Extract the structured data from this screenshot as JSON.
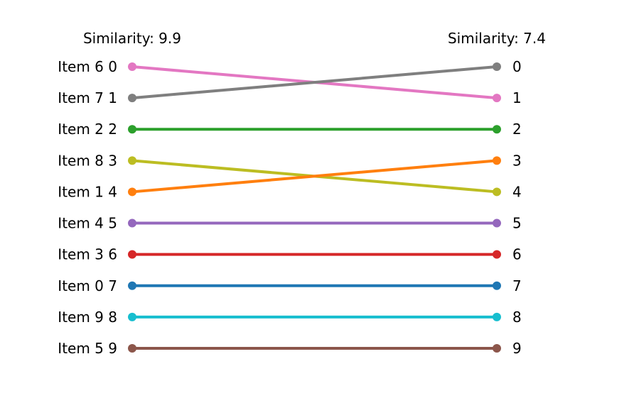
{
  "chart_data": {
    "type": "slope",
    "left": {
      "title": "Similarity: 9.9",
      "labels": [
        "Item 6",
        "Item 7",
        "Item 2",
        "Item 8",
        "Item 1",
        "Item 4",
        "Item 3",
        "Item 0",
        "Item 9",
        "Item 5"
      ],
      "ranks": [
        0,
        1,
        2,
        3,
        4,
        5,
        6,
        7,
        8,
        9
      ]
    },
    "right": {
      "title": "Similarity: 7.4",
      "ranks": [
        0,
        1,
        2,
        3,
        4,
        5,
        6,
        7,
        8,
        9
      ]
    },
    "series": [
      {
        "name": "Item 6",
        "left_rank": 0,
        "right_rank": 1,
        "color": "#e377c2"
      },
      {
        "name": "Item 7",
        "left_rank": 1,
        "right_rank": 0,
        "color": "#7f7f7f"
      },
      {
        "name": "Item 2",
        "left_rank": 2,
        "right_rank": 2,
        "color": "#2ca02c"
      },
      {
        "name": "Item 8",
        "left_rank": 3,
        "right_rank": 4,
        "color": "#bcbd22"
      },
      {
        "name": "Item 1",
        "left_rank": 4,
        "right_rank": 3,
        "color": "#ff7f0e"
      },
      {
        "name": "Item 4",
        "left_rank": 5,
        "right_rank": 5,
        "color": "#9467bd"
      },
      {
        "name": "Item 3",
        "left_rank": 6,
        "right_rank": 6,
        "color": "#d62728"
      },
      {
        "name": "Item 0",
        "left_rank": 7,
        "right_rank": 7,
        "color": "#1f77b4"
      },
      {
        "name": "Item 9",
        "left_rank": 8,
        "right_rank": 8,
        "color": "#17becf"
      },
      {
        "name": "Item 5",
        "left_rank": 9,
        "right_rank": 9,
        "color": "#8c564b"
      }
    ],
    "ylim": [
      0,
      9
    ],
    "grid": false
  }
}
